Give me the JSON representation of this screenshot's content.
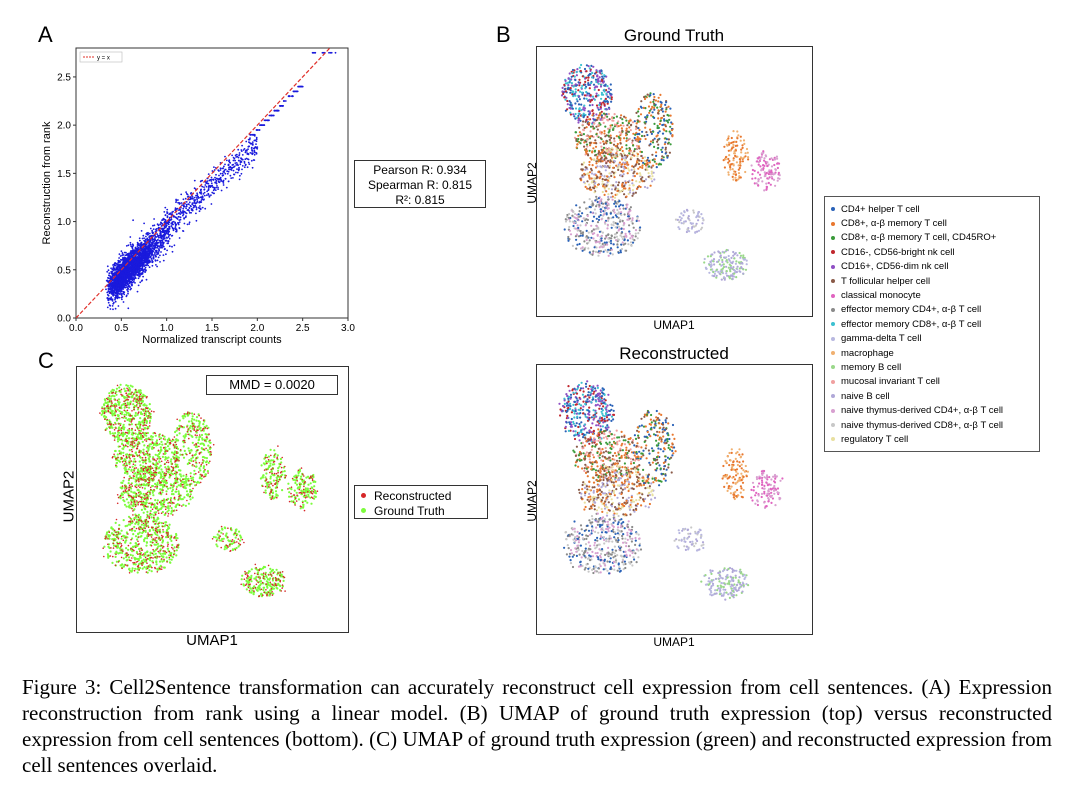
{
  "panels": {
    "a": "A",
    "b": "B",
    "c": "C"
  },
  "chart_data": [
    {
      "type": "scatter",
      "title": "",
      "xlabel": "Normalized transcript counts",
      "ylabel": "Reconstruction from rank",
      "xlim": [
        0.0,
        3.0
      ],
      "ylim": [
        0.0,
        2.8
      ],
      "xticks": [
        "0.0",
        "0.5",
        "1.0",
        "1.5",
        "2.0",
        "2.5",
        "3.0"
      ],
      "yticks": [
        "0.0",
        "0.5",
        "1.0",
        "1.5",
        "2.0",
        "2.5"
      ],
      "legend": [
        "y = x"
      ],
      "legend_placement": "top-left",
      "point_color": "#1a1adc",
      "line_color": "#e0302a",
      "stats": [
        "Pearson R: 0.934",
        "Spearman R: 0.815",
        "R²: 0.815"
      ]
    },
    {
      "type": "scatter",
      "title": "Ground Truth",
      "xlabel": "UMAP1",
      "ylabel": "UMAP2"
    },
    {
      "type": "scatter",
      "title": "Reconstructed",
      "xlabel": "UMAP1",
      "ylabel": "UMAP2"
    },
    {
      "type": "scatter",
      "title": "",
      "xlabel": "UMAP1",
      "ylabel": "UMAP2",
      "annotation": "MMD = 0.0020",
      "series": [
        {
          "name": "Reconstructed",
          "color": "#d62728"
        },
        {
          "name": "Ground Truth",
          "color": "#7cfc3c"
        }
      ]
    }
  ],
  "cell_types": [
    {
      "name": "CD4+ helper T cell",
      "color": "#2a62b8"
    },
    {
      "name": "CD8+, α-β memory T cell",
      "color": "#e8772e"
    },
    {
      "name": "CD8+, α-β memory T cell, CD45RO+",
      "color": "#3a9a3a"
    },
    {
      "name": "CD16-, CD56-bright nk cell",
      "color": "#c0262d"
    },
    {
      "name": "CD16+, CD56-dim nk cell",
      "color": "#8f4fc4"
    },
    {
      "name": "T follicular helper cell",
      "color": "#8a5a48"
    },
    {
      "name": "classical monocyte",
      "color": "#e064c0"
    },
    {
      "name": "effector memory CD4+, α-β T cell",
      "color": "#8a8a8a"
    },
    {
      "name": "effector memory CD8+, α-β T cell",
      "color": "#3cc0d0"
    },
    {
      "name": "gamma-delta T cell",
      "color": "#b8b8e0"
    },
    {
      "name": "macrophage",
      "color": "#f0b070"
    },
    {
      "name": "memory B cell",
      "color": "#9ad88a"
    },
    {
      "name": "mucosal invariant T cell",
      "color": "#f0a0a0"
    },
    {
      "name": "naive B cell",
      "color": "#b0a8d8"
    },
    {
      "name": "naive thymus-derived CD4+, α-β T cell",
      "color": "#d8a0d0"
    },
    {
      "name": "naive thymus-derived CD8+, α-β T cell",
      "color": "#c8c8c8"
    },
    {
      "name": "regulatory T cell",
      "color": "#e8e0a0"
    }
  ],
  "caption": "Figure 3: Cell2Sentence transformation can accurately reconstruct cell expression from cell sentences. (A) Expression reconstruction from rank using a linear model. (B) UMAP of ground truth expression (top) versus reconstructed expression from cell sentences (bottom). (C) UMAP of ground truth expression (green) and reconstructed expression from cell sentences overlaid."
}
